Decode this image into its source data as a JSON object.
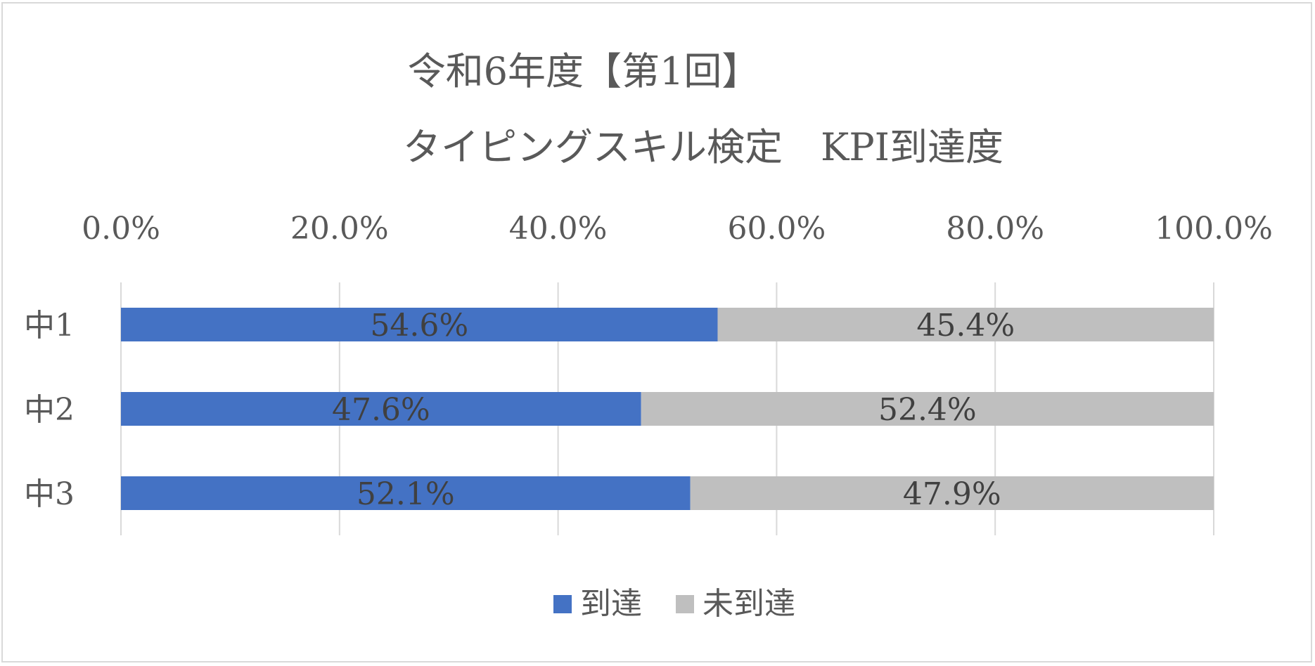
{
  "chart_data": {
    "type": "bar",
    "orientation": "horizontal",
    "stacked": true,
    "title_lines": [
      "令和6年度【第1回】",
      "タイピングスキル検定　KPI到達度"
    ],
    "categories": [
      "中1",
      "中2",
      "中3"
    ],
    "series": [
      {
        "name": "到達",
        "color": "#4472c4",
        "values": [
          54.6,
          47.6,
          52.1
        ],
        "labels": [
          "54.6%",
          "47.6%",
          "52.1%"
        ]
      },
      {
        "name": "未到達",
        "color": "#bfbfbf",
        "values": [
          45.4,
          52.4,
          47.9
        ],
        "labels": [
          "45.4%",
          "52.4%",
          "47.9%"
        ]
      }
    ],
    "xlim": [
      0,
      100
    ],
    "x_ticks": [
      0,
      20,
      40,
      60,
      80,
      100
    ],
    "x_tick_labels": [
      "0.0%",
      "20.0%",
      "40.0%",
      "60.0%",
      "80.0%",
      "100.0%"
    ],
    "x_axis_position": "top",
    "grid": true,
    "legend_position": "bottom"
  }
}
